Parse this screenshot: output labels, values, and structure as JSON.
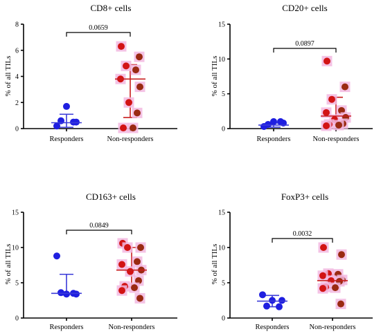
{
  "chart_data": [
    {
      "type": "scatter",
      "title": "CD8+ cells",
      "ylabel": "% of all TILs",
      "ylim": [
        0,
        8
      ],
      "yticks": [
        0,
        2,
        4,
        6,
        8
      ],
      "categories": [
        "Responders",
        "Non-responders"
      ],
      "p_value": "0.0659",
      "series": [
        {
          "values": [
            0.2,
            0.5,
            1.7,
            0.6,
            0.5
          ],
          "center": 0.45,
          "error": [
            0.1,
            1.1
          ]
        },
        {
          "values": [
            6.3,
            5.5,
            4.8,
            4.5,
            3.8,
            3.2,
            2.0,
            1.2,
            0.05,
            0.05
          ],
          "center": 3.8,
          "error": [
            0.85,
            4.9
          ]
        }
      ]
    },
    {
      "type": "scatter",
      "title": "CD20+ cells",
      "ylabel": "% of all TILs",
      "ylim": [
        0,
        15
      ],
      "yticks": [
        0,
        5,
        10,
        15
      ],
      "categories": [
        "Responders",
        "Non-responders"
      ],
      "p_value": "0.0897",
      "series": [
        {
          "values": [
            0.3,
            0.8,
            1.0,
            0.6,
            1.0
          ],
          "center": 0.5,
          "error": [
            0.2,
            0.8
          ]
        },
        {
          "values": [
            9.7,
            6.0,
            4.2,
            2.6,
            2.3,
            1.6,
            1.3,
            0.7,
            0.6,
            0.5,
            0.4
          ],
          "center": 1.8,
          "error": [
            0.6,
            4.5
          ]
        }
      ]
    },
    {
      "type": "scatter",
      "title": "CD163+ cells",
      "ylabel": "% of all TILs",
      "ylim": [
        0,
        15
      ],
      "yticks": [
        0,
        5,
        10,
        15
      ],
      "categories": [
        "Responders",
        "Non-responders"
      ],
      "p_value": "0.0849",
      "series": [
        {
          "values": [
            8.8,
            3.4,
            3.4,
            3.6,
            3.5
          ],
          "center": 3.5,
          "error": [
            3.4,
            6.2
          ]
        },
        {
          "values": [
            10.6,
            10.0,
            10.0,
            8.0,
            7.6,
            6.8,
            6.6,
            5.3,
            4.5,
            4.3,
            3.9,
            2.8
          ],
          "center": 6.8,
          "error": [
            4.4,
            10.0
          ]
        }
      ]
    },
    {
      "type": "scatter",
      "title": "FoxP3+ cells",
      "ylabel": "% of all TILs",
      "ylim": [
        0,
        15
      ],
      "yticks": [
        0,
        5,
        10,
        15
      ],
      "categories": [
        "Responders",
        "Non-responders"
      ],
      "p_value": "0.0032",
      "series": [
        {
          "values": [
            3.3,
            2.5,
            2.5,
            1.7,
            1.6
          ],
          "center": 2.4,
          "error": [
            1.6,
            3.2
          ]
        },
        {
          "values": [
            10.0,
            9.0,
            6.3,
            6.2,
            6.0,
            5.4,
            5.3,
            5.2,
            4.4,
            4.3,
            4.2,
            2.0
          ],
          "center": 5.3,
          "error": [
            4.3,
            6.2
          ]
        }
      ]
    }
  ],
  "colors": {
    "responders": "#1f1fe0",
    "responders_bar": "#3a3ad8",
    "nonresponders_a": "#d21414",
    "nonresponders_b": "#9a2a12",
    "nonresponders_bar": "#c81e1e",
    "nonresponders_halo": "#f2b8e0",
    "axis": "#000000"
  }
}
